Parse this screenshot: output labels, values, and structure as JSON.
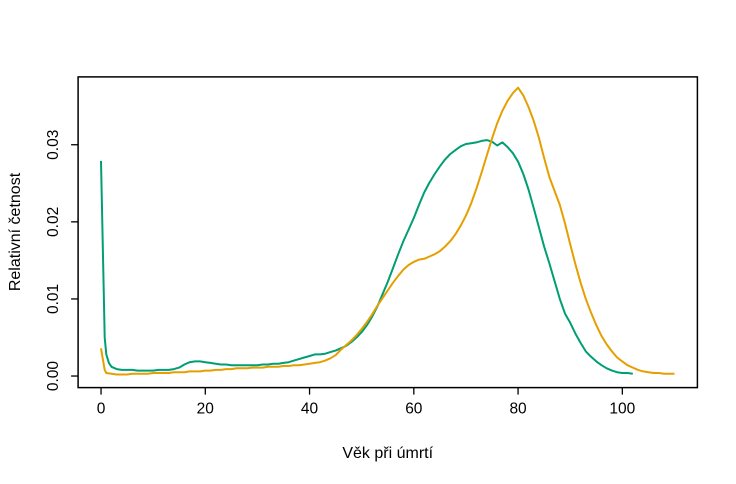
{
  "chart_data": {
    "type": "line",
    "title": "",
    "xlabel": "Věk při úmrtí",
    "ylabel": "Relativní četnost",
    "xlim": [
      -4.4,
      114.4
    ],
    "ylim": [
      -0.0015,
      0.0388
    ],
    "x_ticks": [
      0,
      20,
      40,
      60,
      80,
      100
    ],
    "x_tick_labels": [
      "0",
      "20",
      "40",
      "60",
      "80",
      "100"
    ],
    "y_ticks": [
      0,
      0.01,
      0.02,
      0.03
    ],
    "y_tick_labels": [
      "0.00",
      "0.01",
      "0.02",
      "0.03"
    ],
    "y_tick_labels_rotated": true,
    "grid": false,
    "legend": "none",
    "background": "#ffffff",
    "box_color": "#000000",
    "series": [
      {
        "name": "density-curve-teal",
        "color": "#009E73",
        "line_width": 2,
        "points": [
          [
            0,
            0.0279
          ],
          [
            0.7,
            0.005
          ],
          [
            1,
            0.0028
          ],
          [
            1.5,
            0.0017
          ],
          [
            2,
            0.0012
          ],
          [
            3,
            0.0009
          ],
          [
            4,
            0.0008
          ],
          [
            5,
            0.0008
          ],
          [
            6,
            0.0008
          ],
          [
            7,
            0.0007
          ],
          [
            8,
            0.0007
          ],
          [
            9,
            0.0007
          ],
          [
            10,
            0.0007
          ],
          [
            11,
            0.0008
          ],
          [
            12,
            0.0008
          ],
          [
            13,
            0.0008
          ],
          [
            14,
            0.0009
          ],
          [
            15,
            0.0011
          ],
          [
            16,
            0.0015
          ],
          [
            17,
            0.0018
          ],
          [
            18,
            0.0019
          ],
          [
            19,
            0.0019
          ],
          [
            20,
            0.0018
          ],
          [
            21,
            0.0017
          ],
          [
            22,
            0.0016
          ],
          [
            23,
            0.0015
          ],
          [
            24,
            0.0015
          ],
          [
            25,
            0.0014
          ],
          [
            26,
            0.0014
          ],
          [
            27,
            0.0014
          ],
          [
            28,
            0.0014
          ],
          [
            29,
            0.0014
          ],
          [
            30,
            0.0014
          ],
          [
            31,
            0.0015
          ],
          [
            32,
            0.0015
          ],
          [
            33,
            0.0016
          ],
          [
            34,
            0.0016
          ],
          [
            35,
            0.0017
          ],
          [
            36,
            0.0018
          ],
          [
            37,
            0.002
          ],
          [
            38,
            0.0022
          ],
          [
            39,
            0.0024
          ],
          [
            40,
            0.0026
          ],
          [
            41,
            0.0028
          ],
          [
            42,
            0.0028
          ],
          [
            43,
            0.0029
          ],
          [
            44,
            0.0031
          ],
          [
            45,
            0.0033
          ],
          [
            46,
            0.0036
          ],
          [
            47,
            0.0039
          ],
          [
            48,
            0.0044
          ],
          [
            49,
            0.005
          ],
          [
            50,
            0.0057
          ],
          [
            51,
            0.0066
          ],
          [
            52,
            0.0077
          ],
          [
            53,
            0.009
          ],
          [
            54,
            0.0106
          ],
          [
            55,
            0.0122
          ],
          [
            56,
            0.014
          ],
          [
            57,
            0.0158
          ],
          [
            58,
            0.0175
          ],
          [
            59,
            0.019
          ],
          [
            60,
            0.0205
          ],
          [
            61,
            0.0222
          ],
          [
            62,
            0.0238
          ],
          [
            63,
            0.0251
          ],
          [
            64,
            0.0262
          ],
          [
            65,
            0.0272
          ],
          [
            66,
            0.0281
          ],
          [
            67,
            0.0288
          ],
          [
            68,
            0.0293
          ],
          [
            69,
            0.0298
          ],
          [
            70,
            0.0301
          ],
          [
            71,
            0.0302
          ],
          [
            72,
            0.0303
          ],
          [
            73,
            0.0305
          ],
          [
            74,
            0.0306
          ],
          [
            75,
            0.0304
          ],
          [
            76,
            0.0299
          ],
          [
            77,
            0.0303
          ],
          [
            78,
            0.0297
          ],
          [
            79,
            0.0289
          ],
          [
            80,
            0.0278
          ],
          [
            81,
            0.0262
          ],
          [
            82,
            0.0242
          ],
          [
            83,
            0.0218
          ],
          [
            84,
            0.0193
          ],
          [
            85,
            0.0168
          ],
          [
            86,
            0.0146
          ],
          [
            87,
            0.0123
          ],
          [
            88,
            0.01
          ],
          [
            89,
            0.0081
          ],
          [
            90,
            0.0069
          ],
          [
            91,
            0.0055
          ],
          [
            92,
            0.0043
          ],
          [
            93,
            0.0032
          ],
          [
            94,
            0.0025
          ],
          [
            95,
            0.0019
          ],
          [
            96,
            0.0014
          ],
          [
            97,
            0.001
          ],
          [
            98,
            0.0007
          ],
          [
            99,
            0.0005
          ],
          [
            100,
            0.0004
          ],
          [
            101,
            0.0004
          ],
          [
            102,
            0.0003
          ]
        ]
      },
      {
        "name": "density-curve-amber",
        "color": "#E69F00",
        "line_width": 2,
        "points": [
          [
            0,
            0.0036
          ],
          [
            0.7,
            0.0008
          ],
          [
            1,
            0.0004
          ],
          [
            2,
            0.0003
          ],
          [
            3,
            0.0002
          ],
          [
            4,
            0.0002
          ],
          [
            5,
            0.0002
          ],
          [
            6,
            0.0003
          ],
          [
            7,
            0.0003
          ],
          [
            8,
            0.0003
          ],
          [
            9,
            0.0003
          ],
          [
            10,
            0.0004
          ],
          [
            11,
            0.0004
          ],
          [
            12,
            0.0004
          ],
          [
            13,
            0.0004
          ],
          [
            14,
            0.0005
          ],
          [
            15,
            0.0005
          ],
          [
            16,
            0.0005
          ],
          [
            17,
            0.0006
          ],
          [
            18,
            0.0006
          ],
          [
            19,
            0.0006
          ],
          [
            20,
            0.0007
          ],
          [
            21,
            0.0007
          ],
          [
            22,
            0.0008
          ],
          [
            23,
            0.0008
          ],
          [
            24,
            0.0009
          ],
          [
            25,
            0.0009
          ],
          [
            26,
            0.001
          ],
          [
            27,
            0.001
          ],
          [
            28,
            0.001
          ],
          [
            29,
            0.0011
          ],
          [
            30,
            0.0011
          ],
          [
            31,
            0.0011
          ],
          [
            32,
            0.0012
          ],
          [
            33,
            0.0012
          ],
          [
            34,
            0.0012
          ],
          [
            35,
            0.0013
          ],
          [
            36,
            0.0013
          ],
          [
            37,
            0.0014
          ],
          [
            38,
            0.0014
          ],
          [
            39,
            0.0015
          ],
          [
            40,
            0.0016
          ],
          [
            41,
            0.0017
          ],
          [
            42,
            0.0018
          ],
          [
            43,
            0.002
          ],
          [
            44,
            0.0023
          ],
          [
            45,
            0.0027
          ],
          [
            46,
            0.0034
          ],
          [
            47,
            0.004
          ],
          [
            48,
            0.0046
          ],
          [
            49,
            0.0053
          ],
          [
            50,
            0.0061
          ],
          [
            51,
            0.007
          ],
          [
            52,
            0.008
          ],
          [
            53,
            0.0091
          ],
          [
            54,
            0.0101
          ],
          [
            55,
            0.0111
          ],
          [
            56,
            0.0121
          ],
          [
            57,
            0.013
          ],
          [
            58,
            0.0138
          ],
          [
            59,
            0.0144
          ],
          [
            60,
            0.0148
          ],
          [
            61,
            0.0151
          ],
          [
            62,
            0.0152
          ],
          [
            63,
            0.0155
          ],
          [
            64,
            0.0158
          ],
          [
            65,
            0.0162
          ],
          [
            66,
            0.0168
          ],
          [
            67,
            0.0175
          ],
          [
            68,
            0.0184
          ],
          [
            69,
            0.0195
          ],
          [
            70,
            0.0208
          ],
          [
            71,
            0.0224
          ],
          [
            72,
            0.0243
          ],
          [
            73,
            0.0264
          ],
          [
            74,
            0.0286
          ],
          [
            75,
            0.0308
          ],
          [
            76,
            0.0328
          ],
          [
            77,
            0.0344
          ],
          [
            78,
            0.0357
          ],
          [
            79,
            0.0367
          ],
          [
            80,
            0.0374
          ],
          [
            81,
            0.0364
          ],
          [
            82,
            0.0349
          ],
          [
            83,
            0.0331
          ],
          [
            84,
            0.0309
          ],
          [
            85,
            0.0283
          ],
          [
            86,
            0.0258
          ],
          [
            87,
            0.024
          ],
          [
            88,
            0.0222
          ],
          [
            89,
            0.0198
          ],
          [
            90,
            0.0171
          ],
          [
            91,
            0.0145
          ],
          [
            92,
            0.0121
          ],
          [
            93,
            0.01
          ],
          [
            94,
            0.0082
          ],
          [
            95,
            0.0066
          ],
          [
            96,
            0.0052
          ],
          [
            97,
            0.0041
          ],
          [
            98,
            0.0032
          ],
          [
            99,
            0.0024
          ],
          [
            100,
            0.0019
          ],
          [
            101,
            0.0014
          ],
          [
            102,
            0.0011
          ],
          [
            103,
            0.0008
          ],
          [
            104,
            0.0006
          ],
          [
            105,
            0.0005
          ],
          [
            106,
            0.0004
          ],
          [
            107,
            0.0004
          ],
          [
            108,
            0.0003
          ],
          [
            109,
            0.0003
          ],
          [
            110,
            0.0003
          ]
        ]
      }
    ]
  }
}
